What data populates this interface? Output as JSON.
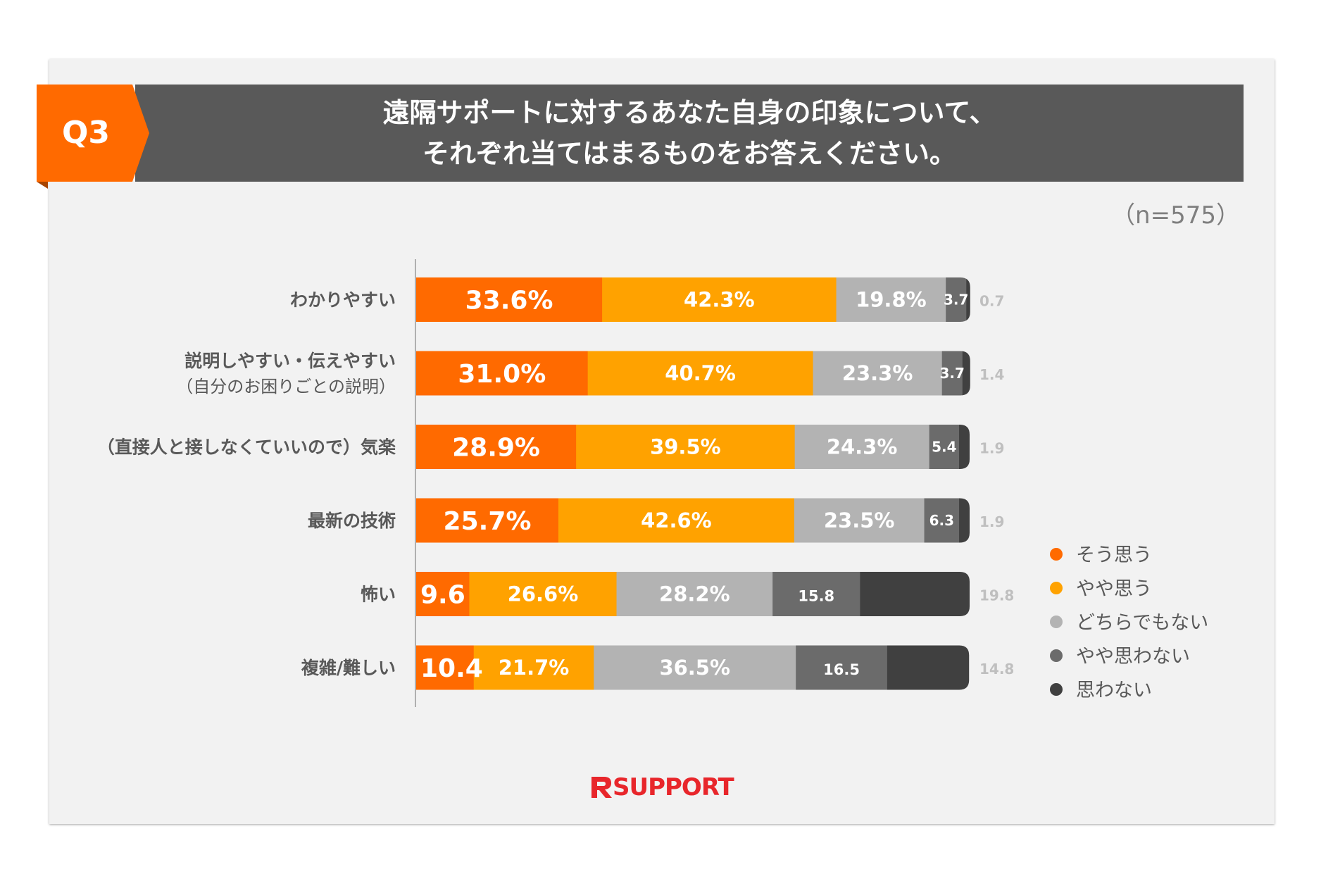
{
  "header": {
    "q_label": "Q3",
    "title_line1": "遠隔サポートに対するあなた自身の印象について、",
    "title_line2": "それぞれ当てはまるものをお答えください。",
    "sample": "（n=575）"
  },
  "brand": {
    "logo_text": "SUPPORT"
  },
  "chart_data": {
    "type": "bar",
    "orientation": "horizontal",
    "stacked": true,
    "xlim": [
      0,
      100
    ],
    "categories": [
      "わかりやすい",
      "説明しやすい・伝えやすい",
      "（直接人と接しなくていいので）気楽",
      "最新の技術",
      "怖い",
      "複雑/難しい"
    ],
    "category_sublabels": [
      "",
      "（自分のお困りごとの説明）",
      "",
      "",
      "",
      ""
    ],
    "series": [
      {
        "name": "そう思う",
        "color": "#ff6a00",
        "values": [
          33.6,
          31.0,
          28.9,
          25.7,
          9.6,
          10.4
        ],
        "labels": [
          "33.6%",
          "31.0%",
          "28.9%",
          "25.7%",
          "9.6",
          "10.4"
        ]
      },
      {
        "name": "やや思う",
        "color": "#ffa200",
        "values": [
          42.3,
          40.7,
          39.5,
          42.6,
          26.6,
          21.7
        ],
        "labels": [
          "42.3%",
          "40.7%",
          "39.5%",
          "42.6%",
          "26.6%",
          "21.7%"
        ]
      },
      {
        "name": "どちらでもない",
        "color": "#b3b3b3",
        "values": [
          19.8,
          23.3,
          24.3,
          23.5,
          28.2,
          36.5
        ],
        "labels": [
          "19.8%",
          "23.3%",
          "24.3%",
          "23.5%",
          "28.2%",
          "36.5%"
        ]
      },
      {
        "name": "やや思わない",
        "color": "#6b6b6b",
        "values": [
          3.7,
          3.7,
          5.4,
          6.3,
          15.8,
          16.5
        ],
        "labels": [
          "3.7",
          "3.7",
          "5.4",
          "6.3",
          "15.8",
          "16.5"
        ]
      },
      {
        "name": "思わない",
        "color": "#404040",
        "values": [
          0.7,
          1.4,
          1.9,
          1.9,
          19.8,
          14.8
        ],
        "labels": [
          "0.7",
          "1.4",
          "1.9",
          "1.9",
          "19.8",
          "14.8"
        ]
      }
    ],
    "legend_position": "right"
  }
}
